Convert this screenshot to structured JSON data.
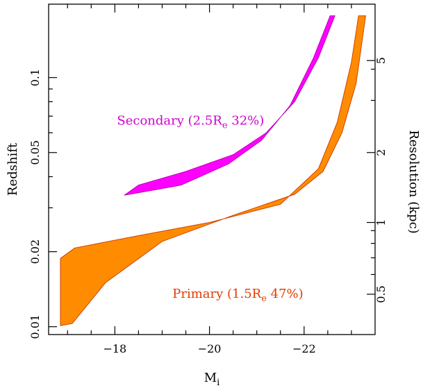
{
  "chart_data": {
    "type": "area",
    "xlabel": "M",
    "xlabel_sub": "i",
    "ylabel": "Redshift",
    "y2label": "Resolution (kpc)",
    "xlim": [
      -16.6,
      -23.5
    ],
    "ylim": [
      0.0093,
      0.197
    ],
    "yscale": "log",
    "x_ticks_major": [
      -18,
      -20,
      -22
    ],
    "x_tick_labels": [
      "−18",
      "−20",
      "−22"
    ],
    "y_ticks_major": [
      0.01,
      0.02,
      0.05,
      0.1
    ],
    "y_tick_labels": [
      "0.01",
      "0.02",
      "0.05",
      "0.1"
    ],
    "y_ticks_minor": [
      0.03,
      0.04,
      0.06,
      0.07,
      0.08,
      0.09
    ],
    "y2_ticks": [
      {
        "z": 0.0135,
        "label": "0.5"
      },
      {
        "z": 0.0262,
        "label": "1"
      },
      {
        "z": 0.05,
        "label": "2"
      },
      {
        "z": 0.117,
        "label": "5"
      }
    ],
    "series": [
      {
        "name": "Secondary",
        "color": "#ff00ff",
        "stroke": "#b800b8",
        "upper": {
          "x": [
            -18.2,
            -18.5,
            -19.5,
            -20.5,
            -21.2,
            -21.8,
            -22.3,
            -22.65
          ],
          "y": [
            0.0337,
            0.037,
            0.042,
            0.049,
            0.06,
            0.08,
            0.12,
            0.177
          ]
        },
        "lower": {
          "x": [
            -22.55,
            -22.2,
            -21.7,
            -21.1,
            -20.4,
            -19.4,
            -18.2
          ],
          "y": [
            0.177,
            0.12,
            0.077,
            0.056,
            0.045,
            0.037,
            0.0337
          ]
        }
      },
      {
        "name": "Primary",
        "color": "#ff8c00",
        "stroke": "#d04000",
        "upper": {
          "x": [
            -16.85,
            -17.15,
            -18.5,
            -20.0,
            -21.5,
            -22.3,
            -22.7,
            -23.0,
            -23.15
          ],
          "y": [
            0.0188,
            0.0207,
            0.0232,
            0.0262,
            0.031,
            0.043,
            0.066,
            0.115,
            0.177
          ]
        },
        "lower": {
          "x": [
            -23.3,
            -23.1,
            -22.8,
            -22.4,
            -21.8,
            -20.5,
            -19.0,
            -17.8,
            -17.1,
            -16.85
          ],
          "y": [
            0.177,
            0.095,
            0.06,
            0.042,
            0.034,
            0.028,
            0.022,
            0.015,
            0.0103,
            0.0101
          ]
        }
      }
    ],
    "annotations": [
      {
        "name": "secondary-label",
        "pre": "Secondary (2.5R",
        "sub": "e",
        "post": " 32%)",
        "color": "#d000d0",
        "x": -19.6,
        "y": 0.0648
      },
      {
        "name": "primary-label",
        "pre": "Primary (1.5R",
        "sub": "e",
        "post": " 47%)",
        "color": "#e03c00",
        "x": -20.6,
        "y": 0.01305
      }
    ]
  }
}
